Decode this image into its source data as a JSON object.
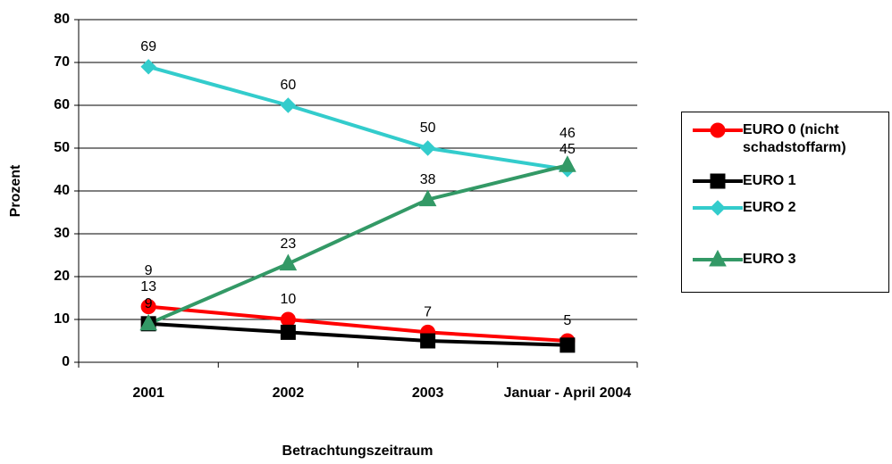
{
  "chart_data": {
    "type": "line",
    "x_label": "Betrachtungszeitraum",
    "y_label": "Prozent",
    "categories": [
      "2001",
      "2002",
      "2003",
      "Januar - April 2004"
    ],
    "series": [
      {
        "name": "EURO 0 (nicht schadstoffarm)",
        "color": "#ff0000",
        "marker": "circle",
        "data_labels": true,
        "values": [
          13,
          10,
          7,
          5
        ]
      },
      {
        "name": "EURO 1",
        "color": "#000000",
        "marker": "square",
        "data_labels": [
          true,
          false,
          false,
          false
        ],
        "values": [
          9,
          7,
          5,
          4
        ]
      },
      {
        "name": "EURO 2",
        "color": "#33cccc",
        "marker": "diamond",
        "data_labels": true,
        "values": [
          69,
          60,
          50,
          45
        ]
      },
      {
        "name": "EURO 3",
        "color": "#339966",
        "marker": "triangle",
        "data_labels": true,
        "values": [
          9,
          23,
          38,
          46
        ]
      }
    ],
    "ylim": [
      0,
      80
    ],
    "yticks": [
      0,
      10,
      20,
      30,
      40,
      50,
      60,
      70,
      80
    ],
    "grid": true
  }
}
